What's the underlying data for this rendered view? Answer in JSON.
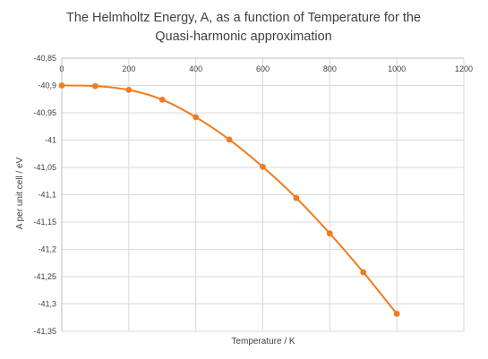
{
  "chart_data": {
    "type": "scatter",
    "title": "The Helmholtz Energy, A, as a function of Temperature for the Quasi-harmonic approximation",
    "title_lines": [
      "The Helmholtz Energy, A, as a function of Temperature for the",
      "Quasi-harmonic approximation"
    ],
    "xlabel": "Temperature / K",
    "ylabel": "A per unit cell / eV",
    "xlim": [
      0,
      1200
    ],
    "ylim": [
      -41.35,
      -40.85
    ],
    "x_ticks": [
      0,
      200,
      400,
      600,
      800,
      1000,
      1200
    ],
    "y_ticks": [
      -40.85,
      -40.9,
      -40.95,
      -41,
      -41.05,
      -41.1,
      -41.15,
      -41.2,
      -41.25,
      -41.3,
      -41.35
    ],
    "x_tick_labels": [
      "0",
      "200",
      "400",
      "600",
      "800",
      "1000",
      "1200"
    ],
    "y_tick_labels": [
      "-40,85",
      "-40,9",
      "-40,95",
      "-41",
      "-41,05",
      "-41,1",
      "-41,15",
      "-41,2",
      "-41,25",
      "-41,3",
      "-41,35"
    ],
    "x_axis_position": "top",
    "smooth": true,
    "grid": true,
    "legend": "none",
    "series": [
      {
        "color": "#f07c1e",
        "x": [
          0,
          100,
          200,
          300,
          400,
          500,
          600,
          700,
          800,
          900,
          1000
        ],
        "y": [
          -40.9,
          -40.901,
          -40.908,
          -40.926,
          -40.958,
          -40.999,
          -41.049,
          -41.106,
          -41.171,
          -41.242,
          -41.318
        ]
      }
    ]
  }
}
